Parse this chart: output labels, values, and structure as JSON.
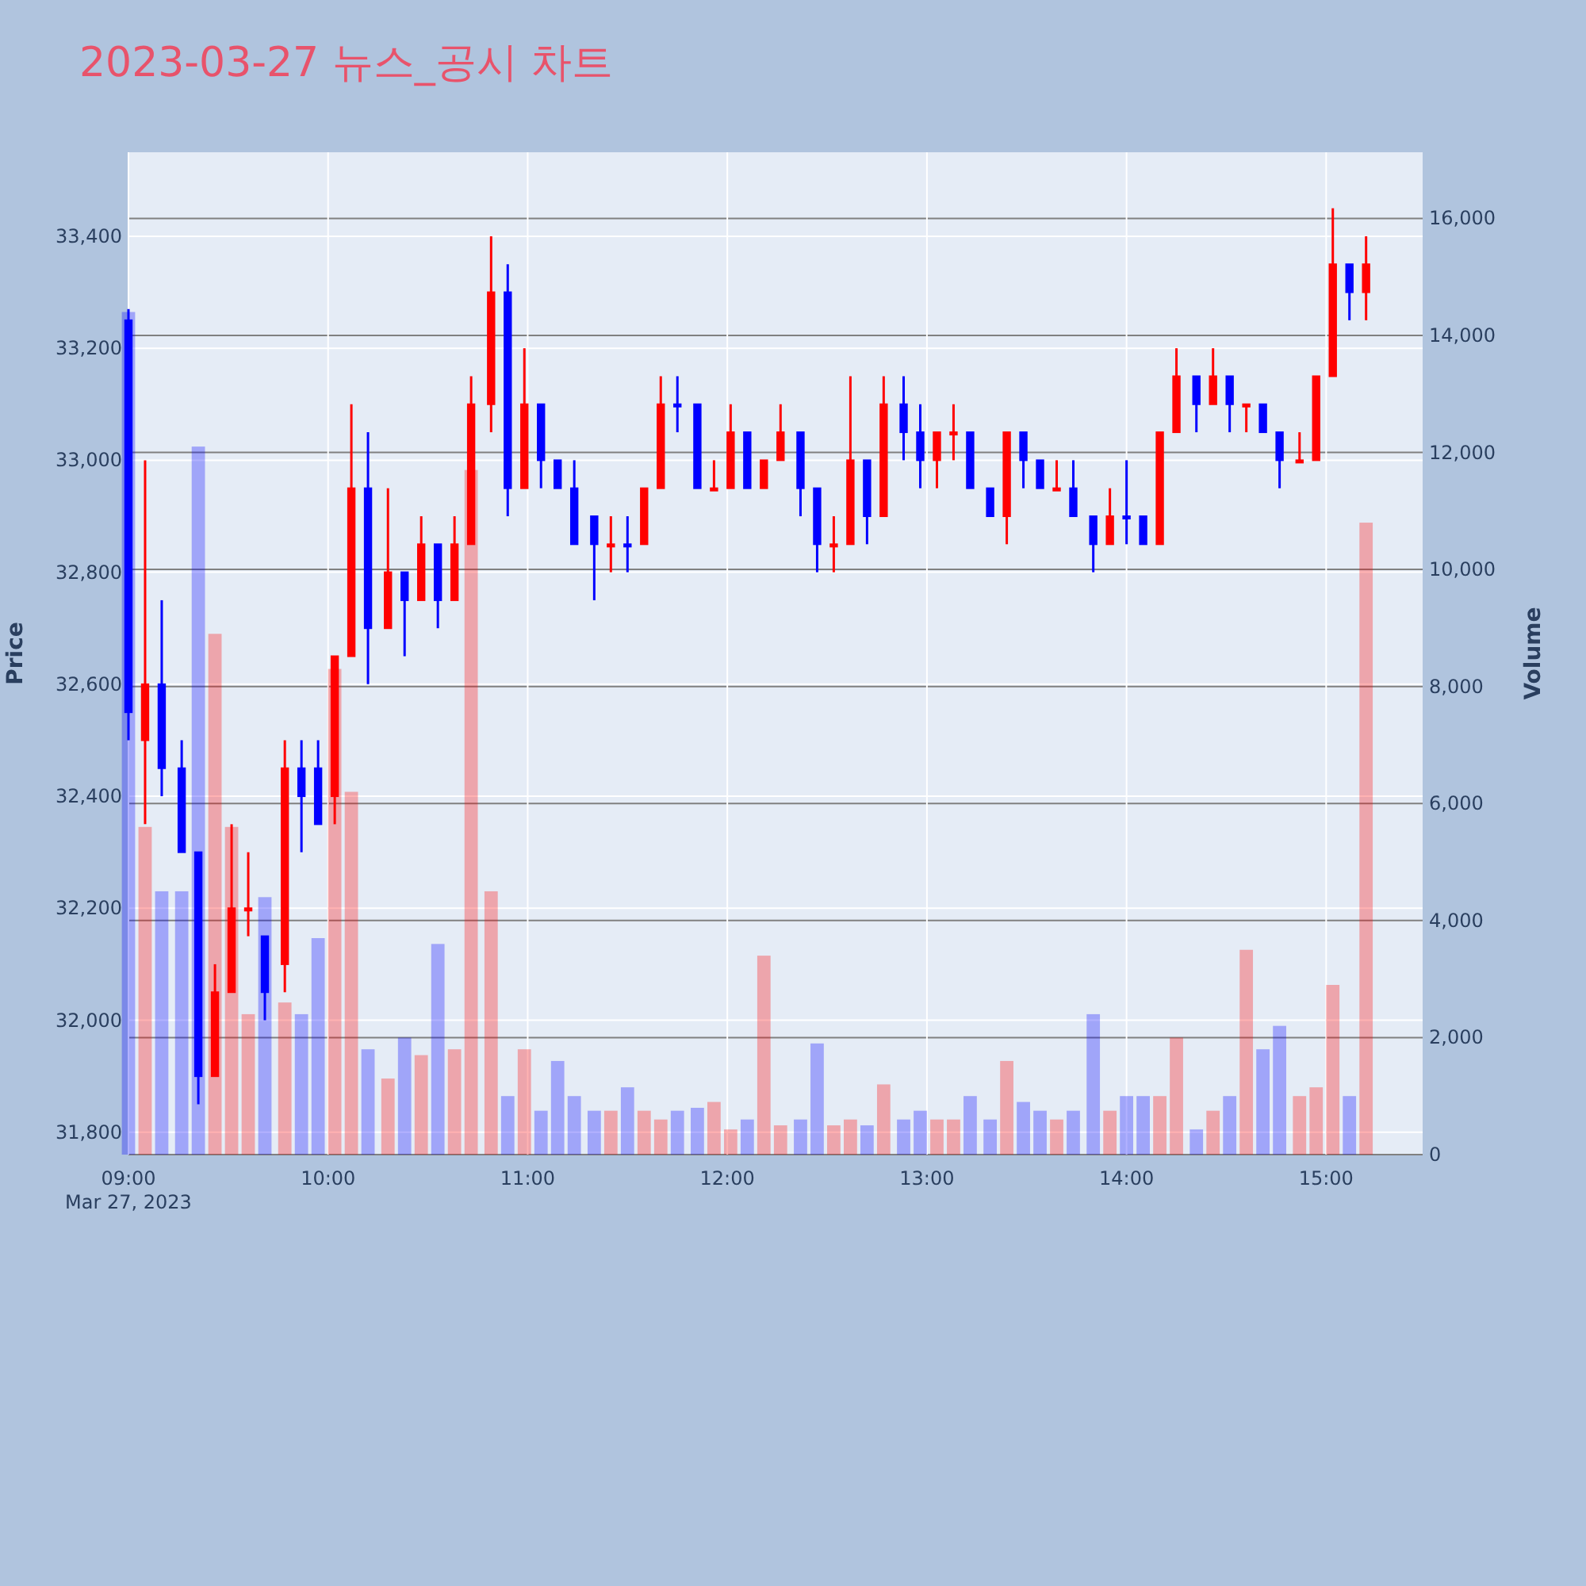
{
  "chart_data": {
    "type": "candlestick",
    "title": "2023-03-27 뉴스_공시 차트",
    "ylabel": "Price",
    "y2label": "Volume",
    "grid": true,
    "x": [
      "2023-03-27T09:00",
      "2023-03-27T09:05",
      "2023-03-27T09:10",
      "2023-03-27T09:16",
      "2023-03-27T09:21",
      "2023-03-27T09:26",
      "2023-03-27T09:31",
      "2023-03-27T09:36",
      "2023-03-27T09:41",
      "2023-03-27T09:47",
      "2023-03-27T09:52",
      "2023-03-27T09:57",
      "2023-03-27T10:02",
      "2023-03-27T10:07",
      "2023-03-27T10:12",
      "2023-03-27T10:18",
      "2023-03-27T10:23",
      "2023-03-27T10:28",
      "2023-03-27T10:33",
      "2023-03-27T10:38",
      "2023-03-27T10:43",
      "2023-03-27T10:49",
      "2023-03-27T10:54",
      "2023-03-27T10:59",
      "2023-03-27T11:04",
      "2023-03-27T11:09",
      "2023-03-27T11:14",
      "2023-03-27T11:20",
      "2023-03-27T11:25",
      "2023-03-27T11:30",
      "2023-03-27T11:35",
      "2023-03-27T11:40",
      "2023-03-27T11:45",
      "2023-03-27T11:51",
      "2023-03-27T11:56",
      "2023-03-27T12:01",
      "2023-03-27T12:06",
      "2023-03-27T12:11",
      "2023-03-27T12:16",
      "2023-03-27T12:22",
      "2023-03-27T12:27",
      "2023-03-27T12:32",
      "2023-03-27T12:37",
      "2023-03-27T12:42",
      "2023-03-27T12:47",
      "2023-03-27T12:53",
      "2023-03-27T12:58",
      "2023-03-27T13:03",
      "2023-03-27T13:08",
      "2023-03-27T13:13",
      "2023-03-27T13:19",
      "2023-03-27T13:24",
      "2023-03-27T13:29",
      "2023-03-27T13:34",
      "2023-03-27T13:39",
      "2023-03-27T13:44",
      "2023-03-27T13:50",
      "2023-03-27T13:55",
      "2023-03-27T14:00",
      "2023-03-27T14:05",
      "2023-03-27T14:10",
      "2023-03-27T14:15",
      "2023-03-27T14:21",
      "2023-03-27T14:26",
      "2023-03-27T14:31",
      "2023-03-27T14:36",
      "2023-03-27T14:41",
      "2023-03-27T14:46",
      "2023-03-27T14:52",
      "2023-03-27T14:57",
      "2023-03-27T15:02",
      "2023-03-27T15:07",
      "2023-03-27T15:12"
    ],
    "series": [
      {
        "ohlc": [
          [
            33250,
            33270,
            32500,
            32550
          ],
          [
            32500,
            33000,
            32350,
            32600
          ],
          [
            32600,
            32750,
            32400,
            32450
          ],
          [
            32450,
            32500,
            32300,
            32300
          ],
          [
            32300,
            32300,
            31850,
            31900
          ],
          [
            31900,
            32100,
            31900,
            32050
          ],
          [
            32050,
            32350,
            32050,
            32200
          ],
          [
            32200,
            32300,
            32150,
            32200
          ],
          [
            32150,
            32150,
            32000,
            32050
          ],
          [
            32100,
            32500,
            32050,
            32450
          ],
          [
            32450,
            32500,
            32300,
            32400
          ],
          [
            32450,
            32500,
            32350,
            32350
          ],
          [
            32400,
            32650,
            32350,
            32650
          ],
          [
            32650,
            33100,
            32650,
            32950
          ],
          [
            32950,
            33050,
            32600,
            32700
          ],
          [
            32700,
            32950,
            32700,
            32800
          ],
          [
            32800,
            32800,
            32650,
            32750
          ],
          [
            32750,
            32900,
            32750,
            32850
          ],
          [
            32850,
            32850,
            32700,
            32750
          ],
          [
            32750,
            32900,
            32750,
            32850
          ],
          [
            32850,
            33150,
            32850,
            33100
          ],
          [
            33100,
            33400,
            33050,
            33300
          ],
          [
            33300,
            33350,
            32900,
            32950
          ],
          [
            32950,
            33200,
            32950,
            33100
          ],
          [
            33100,
            33100,
            32950,
            33000
          ],
          [
            33000,
            33000,
            32950,
            32950
          ],
          [
            32950,
            33000,
            32850,
            32850
          ],
          [
            32900,
            32900,
            32750,
            32850
          ],
          [
            32850,
            32900,
            32800,
            32850
          ],
          [
            32850,
            32900,
            32800,
            32850
          ],
          [
            32850,
            32950,
            32850,
            32950
          ],
          [
            32950,
            33150,
            32950,
            33100
          ],
          [
            33100,
            33150,
            33050,
            33100
          ],
          [
            33100,
            33100,
            32950,
            32950
          ],
          [
            32950,
            33000,
            32950,
            32950
          ],
          [
            32950,
            33100,
            32950,
            33050
          ],
          [
            33050,
            33050,
            32950,
            32950
          ],
          [
            32950,
            33000,
            32950,
            33000
          ],
          [
            33000,
            33100,
            33000,
            33050
          ],
          [
            33050,
            33050,
            32900,
            32950
          ],
          [
            32950,
            32950,
            32800,
            32850
          ],
          [
            32850,
            32900,
            32800,
            32850
          ],
          [
            32850,
            33150,
            32850,
            33000
          ],
          [
            33000,
            33000,
            32850,
            32900
          ],
          [
            32900,
            33150,
            32900,
            33100
          ],
          [
            33100,
            33150,
            33000,
            33050
          ],
          [
            33050,
            33100,
            32950,
            33000
          ],
          [
            33000,
            33050,
            32950,
            33050
          ],
          [
            33050,
            33100,
            33000,
            33050
          ],
          [
            33050,
            33050,
            32950,
            32950
          ],
          [
            32950,
            32950,
            32900,
            32900
          ],
          [
            32900,
            33050,
            32850,
            33050
          ],
          [
            33050,
            33050,
            32950,
            33000
          ],
          [
            33000,
            33000,
            32950,
            32950
          ],
          [
            32950,
            33000,
            32950,
            32950
          ],
          [
            32950,
            33000,
            32900,
            32900
          ],
          [
            32900,
            32900,
            32800,
            32850
          ],
          [
            32850,
            32950,
            32850,
            32900
          ],
          [
            32900,
            33000,
            32850,
            32900
          ],
          [
            32900,
            32900,
            32850,
            32850
          ],
          [
            32850,
            33050,
            32850,
            33050
          ],
          [
            33050,
            33200,
            33050,
            33150
          ],
          [
            33150,
            33150,
            33050,
            33100
          ],
          [
            33100,
            33200,
            33100,
            33150
          ],
          [
            33150,
            33150,
            33050,
            33100
          ],
          [
            33100,
            33100,
            33050,
            33100
          ],
          [
            33100,
            33100,
            33050,
            33050
          ],
          [
            33050,
            33050,
            32950,
            33000
          ],
          [
            33000,
            33050,
            33000,
            33000
          ],
          [
            33000,
            33150,
            33000,
            33150
          ],
          [
            33150,
            33450,
            33150,
            33350
          ],
          [
            33350,
            33350,
            33250,
            33300
          ],
          [
            33300,
            33400,
            33250,
            33350
          ]
        ],
        "colors": [
          "#0000ff",
          "#ff0000",
          "#0000ff",
          "#0000ff",
          "#0000ff",
          "#ff0000",
          "#ff0000",
          "#ff0000",
          "#0000ff",
          "#ff0000",
          "#0000ff",
          "#0000ff",
          "#ff0000",
          "#ff0000",
          "#0000ff",
          "#ff0000",
          "#0000ff",
          "#ff0000",
          "#0000ff",
          "#ff0000",
          "#ff0000",
          "#ff0000",
          "#0000ff",
          "#ff0000",
          "#0000ff",
          "#0000ff",
          "#0000ff",
          "#0000ff",
          "#ff0000",
          "#0000ff",
          "#ff0000",
          "#ff0000",
          "#0000ff",
          "#0000ff",
          "#ff0000",
          "#ff0000",
          "#0000ff",
          "#ff0000",
          "#ff0000",
          "#0000ff",
          "#0000ff",
          "#ff0000",
          "#ff0000",
          "#0000ff",
          "#ff0000",
          "#0000ff",
          "#0000ff",
          "#ff0000",
          "#ff0000",
          "#0000ff",
          "#0000ff",
          "#ff0000",
          "#0000ff",
          "#0000ff",
          "#ff0000",
          "#0000ff",
          "#0000ff",
          "#ff0000",
          "#0000ff",
          "#0000ff",
          "#ff0000",
          "#ff0000",
          "#0000ff",
          "#ff0000",
          "#0000ff",
          "#ff0000",
          "#0000ff",
          "#0000ff",
          "#ff0000",
          "#ff0000",
          "#ff0000",
          "#0000ff",
          "#ff0000"
        ]
      },
      {
        "type": "bar",
        "axis": "y2",
        "values": [
          14400,
          5600,
          4500,
          4500,
          12100,
          8900,
          5600,
          2400,
          4400,
          2600,
          2400,
          3700,
          8300,
          6200,
          1800,
          1300,
          2000,
          1700,
          3600,
          1800,
          11700,
          4500,
          1000,
          1800,
          750,
          1600,
          1000,
          750,
          750,
          1150,
          750,
          600,
          750,
          800,
          900,
          430,
          600,
          3400,
          500,
          600,
          1900,
          500,
          600,
          500,
          1200,
          600,
          750,
          600,
          600,
          1000,
          600,
          1600,
          900,
          750,
          600,
          750,
          2400,
          750,
          1000,
          1000,
          1000,
          2000,
          430,
          750,
          1000,
          3500,
          1800,
          2200,
          1000,
          1150,
          2900,
          1000,
          10800
        ],
        "colors": [
          "#0000ff",
          "#ff0000",
          "#0000ff",
          "#0000ff",
          "#0000ff",
          "#ff0000",
          "#ff0000",
          "#ff0000",
          "#0000ff",
          "#ff0000",
          "#0000ff",
          "#0000ff",
          "#ff0000",
          "#ff0000",
          "#0000ff",
          "#ff0000",
          "#0000ff",
          "#ff0000",
          "#0000ff",
          "#ff0000",
          "#ff0000",
          "#ff0000",
          "#0000ff",
          "#ff0000",
          "#0000ff",
          "#0000ff",
          "#0000ff",
          "#0000ff",
          "#ff0000",
          "#0000ff",
          "#ff0000",
          "#ff0000",
          "#0000ff",
          "#0000ff",
          "#ff0000",
          "#ff0000",
          "#0000ff",
          "#ff0000",
          "#ff0000",
          "#0000ff",
          "#0000ff",
          "#ff0000",
          "#ff0000",
          "#0000ff",
          "#ff0000",
          "#0000ff",
          "#0000ff",
          "#ff0000",
          "#ff0000",
          "#0000ff",
          "#0000ff",
          "#ff0000",
          "#0000ff",
          "#0000ff",
          "#ff0000",
          "#0000ff",
          "#0000ff",
          "#ff0000",
          "#0000ff",
          "#0000ff",
          "#ff0000",
          "#ff0000",
          "#0000ff",
          "#ff0000",
          "#0000ff",
          "#ff0000",
          "#0000ff",
          "#0000ff",
          "#ff0000",
          "#ff0000",
          "#ff0000",
          "#0000ff",
          "#ff0000"
        ]
      }
    ],
    "xlim": [
      "2023-03-27T09:00",
      "2023-03-27T15:29"
    ],
    "xticks": [
      {
        "value": "2023-03-27T09:00",
        "label": "09:00\nMar 27, 2023"
      },
      {
        "value": "2023-03-27T10:00",
        "label": "10:00"
      },
      {
        "value": "2023-03-27T11:00",
        "label": "11:00"
      },
      {
        "value": "2023-03-27T12:00",
        "label": "12:00"
      },
      {
        "value": "2023-03-27T13:00",
        "label": "13:00"
      },
      {
        "value": "2023-03-27T14:00",
        "label": "14:00"
      },
      {
        "value": "2023-03-27T15:00",
        "label": "15:00"
      }
    ],
    "ylim": [
      31760,
      33550
    ],
    "yticks": [
      {
        "value": 31800,
        "label": "31,800"
      },
      {
        "value": 32000,
        "label": "32,000"
      },
      {
        "value": 32200,
        "label": "32,200"
      },
      {
        "value": 32400,
        "label": "32,400"
      },
      {
        "value": 32600,
        "label": "32,600"
      },
      {
        "value": 32800,
        "label": "32,800"
      },
      {
        "value": 33000,
        "label": "33,000"
      },
      {
        "value": 33200,
        "label": "33,200"
      },
      {
        "value": 33400,
        "label": "33,400"
      }
    ],
    "y2lim": [
      0,
      17130
    ],
    "y2ticks": [
      0,
      {
        "value": 2000,
        "label": "2,000"
      },
      {
        "value": 4000,
        "label": "4,000"
      },
      {
        "value": 6000,
        "label": "6,000"
      },
      {
        "value": 8000,
        "label": "8,000"
      },
      {
        "value": 10000,
        "label": "10,000"
      },
      {
        "value": 12000,
        "label": "12,000"
      },
      {
        "value": 14000,
        "label": "14,000"
      },
      {
        "value": 16000,
        "label": "16,000"
      }
    ]
  }
}
